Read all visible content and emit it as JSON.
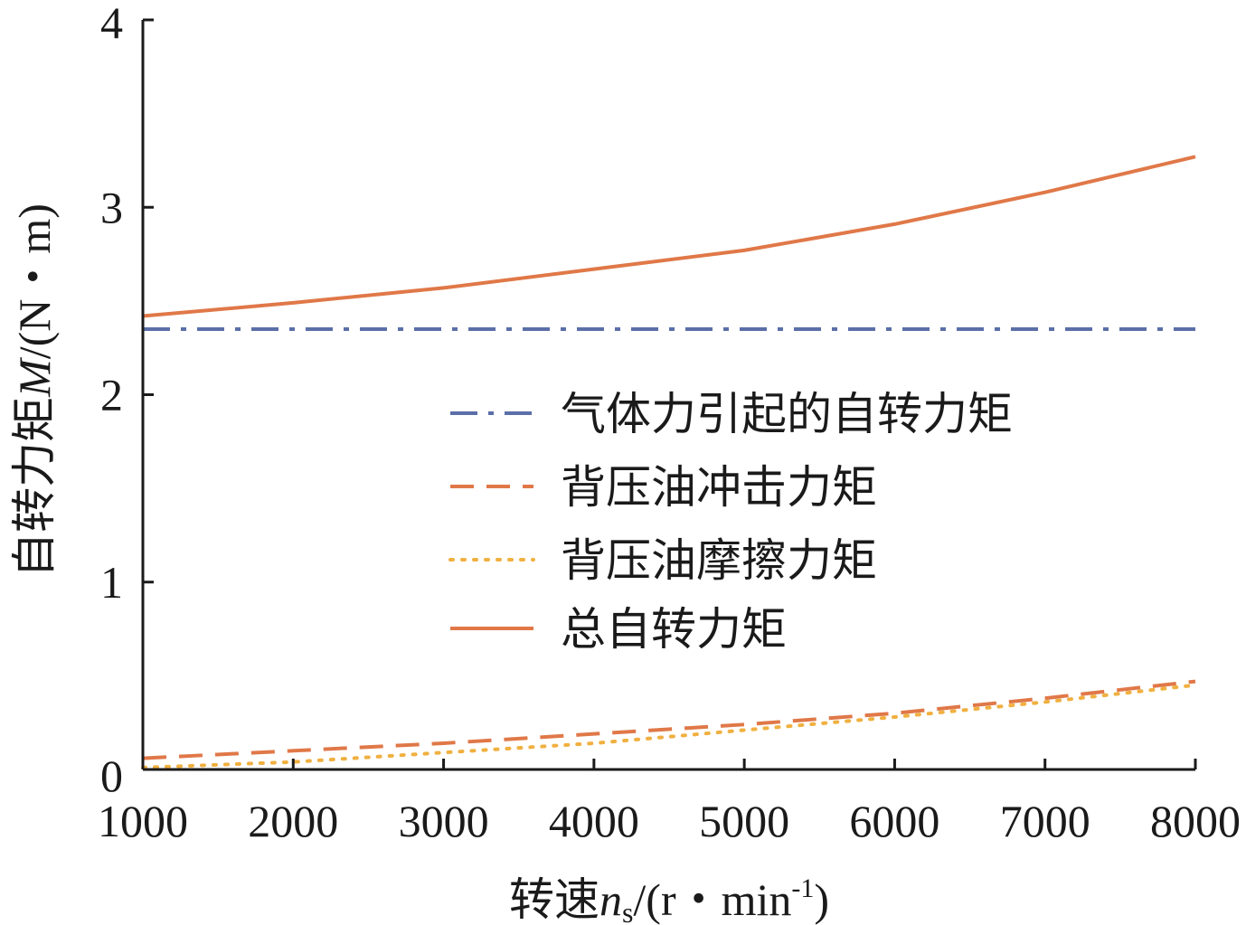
{
  "chart_data": {
    "type": "line",
    "xlabel": {
      "prefix": "转速",
      "symbol": "n",
      "subscript": "s",
      "unit_open": "/(r・min",
      "superscript": "-1",
      "unit_close": ")"
    },
    "ylabel": {
      "prefix": "自转力矩",
      "symbol": "M",
      "unit": "/(N・m)"
    },
    "x_ticks": [
      "1000",
      "2000",
      "3000",
      "4000",
      "5000",
      "6000",
      "7000",
      "8000"
    ],
    "y_ticks": [
      "0",
      "1",
      "2",
      "3",
      "4"
    ],
    "xlim": [
      1000,
      8000
    ],
    "ylim": [
      0,
      4
    ],
    "grid": false,
    "legend_position": "center-right",
    "x": [
      1000,
      2000,
      3000,
      4000,
      5000,
      6000,
      7000,
      8000
    ],
    "series": [
      {
        "name": "气体力引起的自转力矩",
        "style": "dash-dot",
        "color": "#5b6fa8",
        "values": [
          2.35,
          2.35,
          2.35,
          2.35,
          2.35,
          2.35,
          2.35,
          2.35
        ]
      },
      {
        "name": "背压油冲击力矩",
        "style": "dashed",
        "color": "#e07848",
        "values": [
          0.06,
          0.1,
          0.14,
          0.19,
          0.24,
          0.3,
          0.38,
          0.47
        ]
      },
      {
        "name": "背压油摩擦力矩",
        "style": "dotted",
        "color": "#f0b040",
        "values": [
          0.01,
          0.04,
          0.09,
          0.14,
          0.21,
          0.28,
          0.36,
          0.45
        ]
      },
      {
        "name": "总自转力矩",
        "style": "solid",
        "color": "#e07848",
        "values": [
          2.42,
          2.49,
          2.57,
          2.67,
          2.77,
          2.91,
          3.08,
          3.27
        ]
      }
    ]
  }
}
